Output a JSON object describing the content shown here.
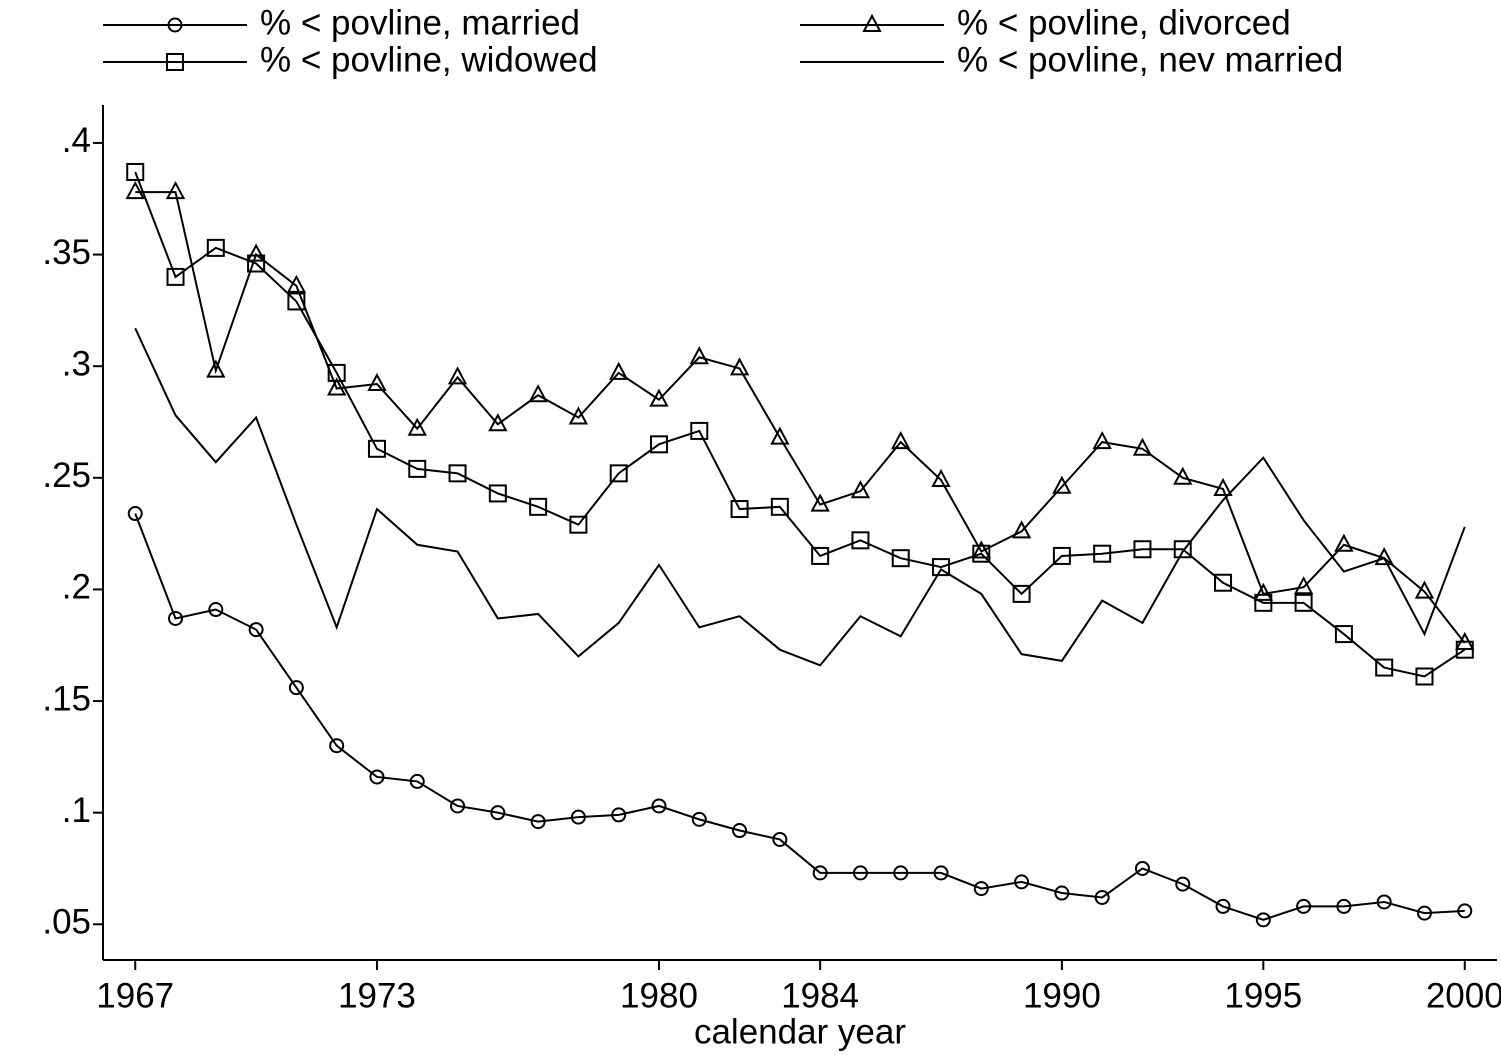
{
  "chart_data": {
    "type": "line",
    "x_label": "calendar year",
    "x": [
      1967,
      1968,
      1969,
      1970,
      1971,
      1972,
      1973,
      1974,
      1975,
      1976,
      1977,
      1978,
      1979,
      1980,
      1981,
      1982,
      1983,
      1984,
      1985,
      1986,
      1987,
      1988,
      1989,
      1990,
      1991,
      1992,
      1993,
      1994,
      1995,
      1996,
      1997,
      1998,
      1999,
      2000
    ],
    "series": [
      {
        "name": "% < povline, married",
        "color": "#000000",
        "marker": "circle",
        "values": [
          0.234,
          0.187,
          0.191,
          0.182,
          0.156,
          0.13,
          0.116,
          0.114,
          0.103,
          0.1,
          0.096,
          0.098,
          0.099,
          0.103,
          0.097,
          0.092,
          0.088,
          0.073,
          0.073,
          0.073,
          0.073,
          0.066,
          0.069,
          0.064,
          0.062,
          0.075,
          0.068,
          0.058,
          0.052,
          0.058,
          0.058,
          0.06,
          0.055,
          0.056
        ]
      },
      {
        "name": "% < povline, divorced",
        "color": "#000000",
        "marker": "triangle",
        "values": [
          0.378,
          0.378,
          0.298,
          0.35,
          0.336,
          0.29,
          0.292,
          0.272,
          0.295,
          0.274,
          0.287,
          0.277,
          0.297,
          0.285,
          0.304,
          0.299,
          0.268,
          0.238,
          0.244,
          0.266,
          0.249,
          0.217,
          0.226,
          0.246,
          0.266,
          0.263,
          0.25,
          0.245,
          0.198,
          0.201,
          0.22,
          0.214,
          0.199,
          0.176
        ]
      },
      {
        "name": "% < povline, widowed",
        "color": "#000000",
        "marker": "square",
        "values": [
          0.387,
          0.34,
          0.353,
          0.346,
          0.329,
          0.297,
          0.263,
          0.254,
          0.252,
          0.243,
          0.237,
          0.229,
          0.252,
          0.265,
          0.271,
          0.236,
          0.237,
          0.215,
          0.222,
          0.214,
          0.21,
          0.216,
          0.198,
          0.215,
          0.216,
          0.218,
          0.218,
          0.203,
          0.194,
          0.194,
          0.18,
          0.165,
          0.161,
          0.173
        ]
      },
      {
        "name": "% < povline, nev married",
        "color": "#000000",
        "marker": "none",
        "values": [
          0.317,
          0.278,
          0.257,
          0.277,
          0.229,
          0.183,
          0.236,
          0.22,
          0.217,
          0.187,
          0.189,
          0.17,
          0.185,
          0.211,
          0.183,
          0.188,
          0.173,
          0.166,
          0.188,
          0.179,
          0.209,
          0.198,
          0.171,
          0.168,
          0.195,
          0.185,
          0.217,
          0.24,
          0.259,
          0.231,
          0.208,
          0.214,
          0.18,
          0.228
        ]
      }
    ],
    "xlim": [
      1966.2,
      2000.8
    ],
    "xticks": [
      1967,
      1973,
      1980,
      1984,
      1990,
      1995,
      2000
    ],
    "ylim": [
      0.034,
      0.417
    ],
    "yticks": [
      {
        "value": 0.05,
        "label": ".05"
      },
      {
        "value": 0.1,
        "label": ".1"
      },
      {
        "value": 0.15,
        "label": ".15"
      },
      {
        "value": 0.2,
        "label": ".2"
      },
      {
        "value": 0.25,
        "label": ".25"
      },
      {
        "value": 0.3,
        "label": ".3"
      },
      {
        "value": 0.35,
        "label": ".35"
      },
      {
        "value": 0.4,
        "label": ".4"
      }
    ],
    "grid": false
  }
}
